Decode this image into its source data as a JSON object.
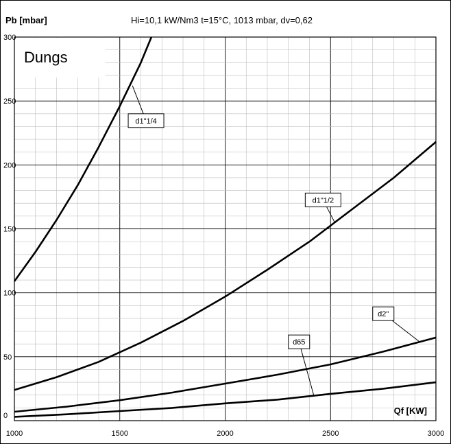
{
  "chart_data": {
    "type": "line",
    "title": "Hi=10,1 kW/Nm3  t=15°C, 1013 mbar, dv=0,62",
    "ylabel": "Pb [mbar]",
    "xlabel": "Qf [KW]",
    "xlim": [
      1000,
      3000
    ],
    "ylim": [
      0,
      300
    ],
    "x_ticks": [
      "1000",
      "1500",
      "2000",
      "2500",
      "3000"
    ],
    "y_ticks": [
      "0",
      "50",
      "100",
      "150",
      "200",
      "250",
      "300"
    ],
    "grid": true,
    "watermark": "Dungs",
    "series": [
      {
        "name": "d1\"1/4",
        "x": [
          1000,
          1100,
          1200,
          1300,
          1400,
          1500,
          1600,
          1650
        ],
        "y": [
          109,
          132,
          157,
          184,
          214,
          246,
          280,
          300
        ]
      },
      {
        "name": "d1\"1/2",
        "x": [
          1000,
          1200,
          1400,
          1600,
          1800,
          2000,
          2200,
          2400,
          2600,
          2800,
          3000
        ],
        "y": [
          24,
          34,
          46,
          61,
          78,
          97,
          118,
          140,
          165,
          190,
          218
        ]
      },
      {
        "name": "d2\"",
        "x": [
          1000,
          1250,
          1500,
          1750,
          2000,
          2250,
          2500,
          2750,
          3000
        ],
        "y": [
          7,
          11,
          16,
          22,
          29,
          36,
          44,
          54,
          65
        ]
      },
      {
        "name": "d65",
        "x": [
          1000,
          1250,
          1500,
          1750,
          2000,
          2250,
          2500,
          2750,
          3000
        ],
        "y": [
          3,
          5,
          7.5,
          10,
          13.5,
          16.5,
          21,
          25,
          30
        ]
      }
    ],
    "labels": [
      {
        "series": "d1\"1/4",
        "text": "d1\"1/4",
        "at_x": 1560,
        "at_y": 262,
        "box_x": 1540,
        "box_y": 240
      },
      {
        "series": "d1\"1/2",
        "text": "d1\"1/2",
        "at_x": 2520,
        "at_y": 155,
        "box_x": 2380,
        "box_y": 178
      },
      {
        "series": "d2\"",
        "text": "d2\"",
        "at_x": 2920,
        "at_y": 62,
        "box_x": 2700,
        "box_y": 89
      },
      {
        "series": "d65",
        "text": "d65",
        "at_x": 2420,
        "at_y": 20,
        "box_x": 2300,
        "box_y": 67
      }
    ]
  }
}
